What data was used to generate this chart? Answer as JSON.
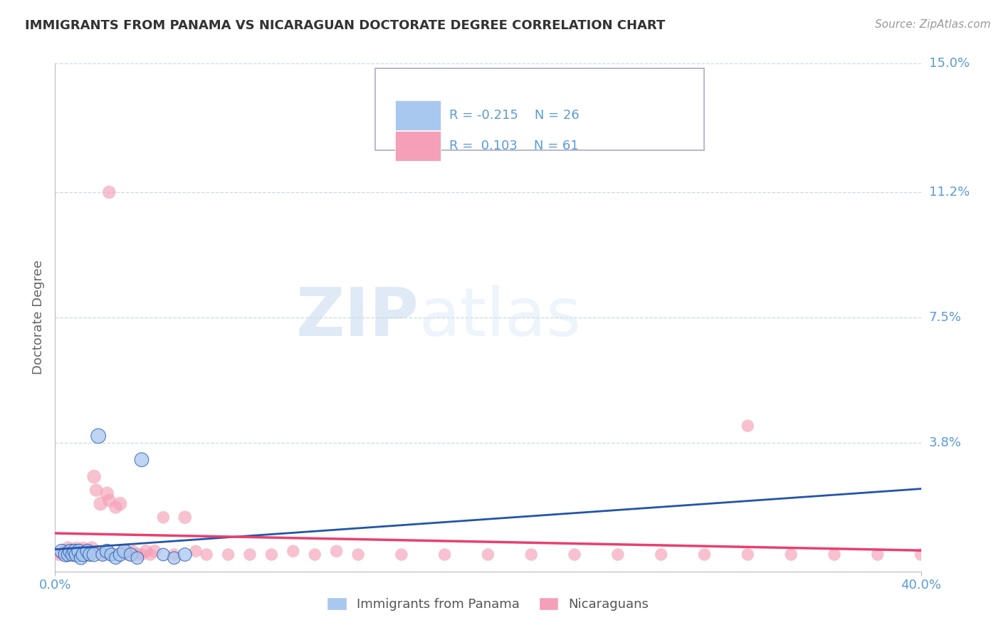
{
  "title": "IMMIGRANTS FROM PANAMA VS NICARAGUAN DOCTORATE DEGREE CORRELATION CHART",
  "source": "Source: ZipAtlas.com",
  "ylabel": "Doctorate Degree",
  "xlim": [
    0.0,
    0.4
  ],
  "ylim": [
    0.0,
    0.15
  ],
  "ytick_vals": [
    0.038,
    0.075,
    0.112,
    0.15
  ],
  "ytick_labels": [
    "3.8%",
    "7.5%",
    "11.2%",
    "15.0%"
  ],
  "xtick_vals": [
    0.0,
    0.4
  ],
  "xtick_labels": [
    "0.0%",
    "40.0%"
  ],
  "legend_r_panama": "-0.215",
  "legend_n_panama": "26",
  "legend_r_nicaragua": "0.103",
  "legend_n_nicaragua": "61",
  "color_panama": "#A8C8F0",
  "color_nicaragua": "#F4A0B8",
  "color_panama_line": "#2255AA",
  "color_nicaragua_line": "#E84070",
  "color_axis_labels": "#5B9BD5",
  "color_grid": "#C8D8E8",
  "watermark_zip": "ZIP",
  "watermark_atlas": "atlas",
  "panama_x": [
    0.003,
    0.005,
    0.006,
    0.007,
    0.008,
    0.009,
    0.01,
    0.011,
    0.012,
    0.013,
    0.015,
    0.016,
    0.018,
    0.02,
    0.022,
    0.024,
    0.026,
    0.028,
    0.03,
    0.032,
    0.035,
    0.038,
    0.04,
    0.05,
    0.055,
    0.06
  ],
  "panama_y": [
    0.006,
    0.005,
    0.005,
    0.006,
    0.005,
    0.006,
    0.005,
    0.006,
    0.004,
    0.005,
    0.006,
    0.005,
    0.005,
    0.04,
    0.005,
    0.006,
    0.005,
    0.004,
    0.005,
    0.006,
    0.005,
    0.004,
    0.033,
    0.005,
    0.004,
    0.005
  ],
  "panama_sizes": [
    200,
    220,
    180,
    200,
    180,
    200,
    220,
    200,
    180,
    200,
    200,
    180,
    200,
    220,
    180,
    200,
    180,
    160,
    180,
    200,
    180,
    160,
    200,
    160,
    160,
    180
  ],
  "nicaragua_x": [
    0.002,
    0.003,
    0.004,
    0.005,
    0.006,
    0.007,
    0.008,
    0.009,
    0.01,
    0.011,
    0.012,
    0.013,
    0.014,
    0.015,
    0.016,
    0.017,
    0.018,
    0.019,
    0.02,
    0.021,
    0.022,
    0.024,
    0.025,
    0.026,
    0.028,
    0.03,
    0.032,
    0.034,
    0.036,
    0.038,
    0.04,
    0.042,
    0.044,
    0.046,
    0.05,
    0.055,
    0.06,
    0.065,
    0.07,
    0.08,
    0.09,
    0.1,
    0.11,
    0.12,
    0.13,
    0.14,
    0.16,
    0.18,
    0.2,
    0.22,
    0.24,
    0.26,
    0.28,
    0.3,
    0.32,
    0.34,
    0.36,
    0.38,
    0.4,
    0.32,
    0.025
  ],
  "nicaragua_y": [
    0.005,
    0.005,
    0.006,
    0.006,
    0.007,
    0.006,
    0.005,
    0.006,
    0.007,
    0.006,
    0.006,
    0.007,
    0.006,
    0.005,
    0.006,
    0.007,
    0.028,
    0.024,
    0.006,
    0.02,
    0.005,
    0.023,
    0.021,
    0.005,
    0.019,
    0.02,
    0.006,
    0.005,
    0.006,
    0.005,
    0.005,
    0.006,
    0.005,
    0.006,
    0.016,
    0.005,
    0.016,
    0.006,
    0.005,
    0.005,
    0.005,
    0.005,
    0.006,
    0.005,
    0.006,
    0.005,
    0.005,
    0.005,
    0.005,
    0.005,
    0.005,
    0.005,
    0.005,
    0.005,
    0.005,
    0.005,
    0.005,
    0.005,
    0.005,
    0.043,
    0.112
  ],
  "nicaragua_sizes": [
    180,
    160,
    180,
    200,
    180,
    160,
    200,
    180,
    160,
    200,
    180,
    160,
    180,
    200,
    160,
    180,
    200,
    180,
    160,
    200,
    180,
    200,
    180,
    160,
    180,
    200,
    160,
    180,
    160,
    180,
    160,
    180,
    160,
    180,
    160,
    160,
    180,
    160,
    160,
    160,
    160,
    160,
    160,
    160,
    160,
    160,
    160,
    160,
    160,
    160,
    160,
    160,
    160,
    160,
    160,
    160,
    160,
    160,
    160,
    160,
    180
  ],
  "panama_line_x0": 0.0,
  "panama_line_x1": 0.4,
  "nicaragua_line_x0": 0.0,
  "nicaragua_line_x1": 0.4
}
